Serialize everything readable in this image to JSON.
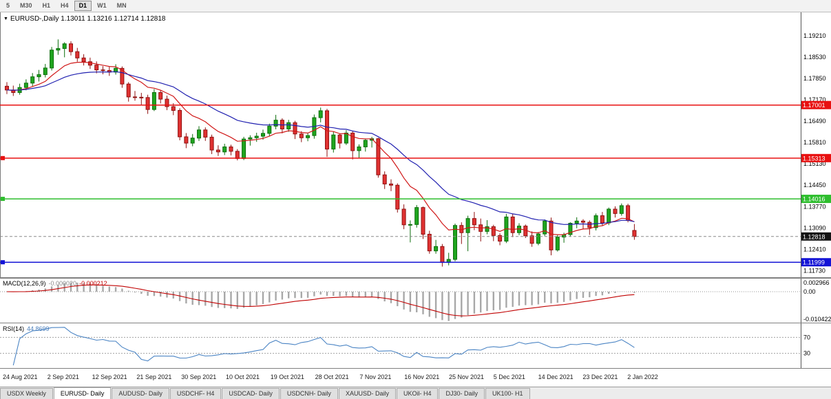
{
  "toolbar": {
    "buttons": [
      {
        "label": "5",
        "active": false
      },
      {
        "label": "M30",
        "active": false
      },
      {
        "label": "H1",
        "active": false
      },
      {
        "label": "H4",
        "active": false
      },
      {
        "label": "D1",
        "active": true
      },
      {
        "label": "W1",
        "active": false
      },
      {
        "label": "MN",
        "active": false
      }
    ]
  },
  "chart": {
    "title_symbol": "EURUSD-,Daily",
    "title_ohlc": "1.13011 1.13216 1.12714 1.12818",
    "y_axis_labels": [
      "1.19210",
      "1.18530",
      "1.17850",
      "1.17170",
      "1.16490",
      "1.15810",
      "1.15130",
      "1.14450",
      "1.13770",
      "1.13090",
      "1.12410",
      "1.11730"
    ],
    "price_range": {
      "top": 1.1995,
      "bottom": 1.115
    },
    "hlines": [
      {
        "price": 1.17001,
        "label": "1.17001",
        "color": "#e81010",
        "handle": false
      },
      {
        "price": 1.15313,
        "label": "1.15313",
        "color": "#e81010",
        "handle": true
      },
      {
        "price": 1.14016,
        "label": "1.14016",
        "color": "#2dbe2d",
        "handle": true
      },
      {
        "price": 1.11999,
        "label": "1.11999",
        "color": "#1414d6",
        "handle": true
      }
    ],
    "current_price": {
      "value": 1.12818,
      "label": "1.12818",
      "bg": "#141414"
    },
    "up_color": "#1fa51f",
    "up_edge": "#0c6e0c",
    "down_color": "#e03232",
    "down_edge": "#901010",
    "ma_fast_color": "#d01818",
    "ma_slow_color": "#2020b0"
  },
  "macd": {
    "label": "MACD(12,26,9)",
    "value_main": "-0.000020",
    "value_signal": "-0.000212",
    "axis_labels": [
      "0.002966",
      "0.00",
      "-0.010422"
    ],
    "histogram_color": "#a8a8a8",
    "signal_color": "#c00000"
  },
  "rsi": {
    "label": "RSI(14)",
    "value": "44.8699",
    "levels": [
      70,
      30
    ],
    "axis_labels": [
      "70",
      "30"
    ],
    "line_color": "#4a84c4"
  },
  "x_axis": {
    "labels": [
      "24 Aug 2021",
      "2 Sep 2021",
      "12 Sep 2021",
      "21 Sep 2021",
      "30 Sep 2021",
      "10 Oct 2021",
      "19 Oct 2021",
      "28 Oct 2021",
      "7 Nov 2021",
      "16 Nov 2021",
      "25 Nov 2021",
      "5 Dec 2021",
      "14 Dec 2021",
      "23 Dec 2021",
      "2 Jan 2022"
    ]
  },
  "tabs": [
    {
      "label": "USDX Weekly",
      "active": false
    },
    {
      "label": "EURUSD- Daily",
      "active": true
    },
    {
      "label": "AUDUSD- Daily",
      "active": false
    },
    {
      "label": "USDCHF- H4",
      "active": false
    },
    {
      "label": "USDCAD- Daily",
      "active": false
    },
    {
      "label": "USDCNH- Daily",
      "active": false
    },
    {
      "label": "XAUUSD- Daily",
      "active": false
    },
    {
      "label": "UKOil- H4",
      "active": false
    },
    {
      "label": "DJ30- Daily",
      "active": false
    },
    {
      "label": "UK100- H1",
      "active": false
    }
  ],
  "chart_data": {
    "type": "candlestick",
    "symbol": "EURUSD",
    "timeframe": "Daily",
    "title": "EURUSD-,Daily",
    "x_labels": [
      "24 Aug 2021",
      "2 Sep 2021",
      "12 Sep 2021",
      "21 Sep 2021",
      "30 Sep 2021",
      "10 Oct 2021",
      "19 Oct 2021",
      "28 Oct 2021",
      "7 Nov 2021",
      "16 Nov 2021",
      "25 Nov 2021",
      "5 Dec 2021",
      "14 Dec 2021",
      "23 Dec 2021",
      "2 Jan 2022"
    ],
    "candles_per_label": 7,
    "ylim": [
      1.115,
      1.1995
    ],
    "candles": [
      [
        1.176,
        1.1773,
        1.1735,
        1.1748
      ],
      [
        1.1748,
        1.1762,
        1.1729,
        1.174
      ],
      [
        1.174,
        1.1768,
        1.1733,
        1.1756
      ],
      [
        1.1756,
        1.1782,
        1.1747,
        1.177
      ],
      [
        1.177,
        1.1802,
        1.176,
        1.179
      ],
      [
        1.179,
        1.1812,
        1.1775,
        1.1797
      ],
      [
        1.1797,
        1.1831,
        1.1788,
        1.1818
      ],
      [
        1.1818,
        1.1885,
        1.181,
        1.1875
      ],
      [
        1.1875,
        1.1909,
        1.186,
        1.188
      ],
      [
        1.188,
        1.19,
        1.1852,
        1.1895
      ],
      [
        1.1895,
        1.1903,
        1.1858,
        1.187
      ],
      [
        1.187,
        1.1882,
        1.1838,
        1.185
      ],
      [
        1.185,
        1.1862,
        1.1826,
        1.1838
      ],
      [
        1.1838,
        1.1851,
        1.1815,
        1.1827
      ],
      [
        1.1827,
        1.1839,
        1.1801,
        1.1812
      ],
      [
        1.1812,
        1.1824,
        1.1798,
        1.181
      ],
      [
        1.181,
        1.1822,
        1.1793,
        1.1805
      ],
      [
        1.1805,
        1.183,
        1.1797,
        1.1817
      ],
      [
        1.1817,
        1.1823,
        1.1755,
        1.1767
      ],
      [
        1.1767,
        1.1773,
        1.1711,
        1.1726
      ],
      [
        1.1726,
        1.1745,
        1.1714,
        1.1725
      ],
      [
        1.1725,
        1.1739,
        1.1701,
        1.1724
      ],
      [
        1.1724,
        1.1733,
        1.1672,
        1.1686
      ],
      [
        1.1686,
        1.1751,
        1.1681,
        1.174
      ],
      [
        1.174,
        1.1747,
        1.1705,
        1.1719
      ],
      [
        1.1719,
        1.173,
        1.1684,
        1.1695
      ],
      [
        1.1695,
        1.1706,
        1.1668,
        1.1683
      ],
      [
        1.1683,
        1.169,
        1.1588,
        1.1599
      ],
      [
        1.1599,
        1.1611,
        1.1563,
        1.1579
      ],
      [
        1.1579,
        1.1608,
        1.1569,
        1.1595
      ],
      [
        1.1595,
        1.1633,
        1.1586,
        1.1621
      ],
      [
        1.1621,
        1.1629,
        1.1586,
        1.1598
      ],
      [
        1.1598,
        1.1606,
        1.1544,
        1.1557
      ],
      [
        1.1557,
        1.1572,
        1.1538,
        1.1551
      ],
      [
        1.1551,
        1.1577,
        1.1541,
        1.1567
      ],
      [
        1.1567,
        1.1574,
        1.154,
        1.1553
      ],
      [
        1.1553,
        1.156,
        1.1524,
        1.153
      ],
      [
        1.153,
        1.1599,
        1.1525,
        1.1592
      ],
      [
        1.1592,
        1.1604,
        1.1571,
        1.1596
      ],
      [
        1.1596,
        1.1612,
        1.1583,
        1.1601
      ],
      [
        1.1601,
        1.1622,
        1.159,
        1.161
      ],
      [
        1.161,
        1.1641,
        1.1601,
        1.1633
      ],
      [
        1.1633,
        1.1669,
        1.1623,
        1.1652
      ],
      [
        1.1652,
        1.1658,
        1.161,
        1.1624
      ],
      [
        1.1624,
        1.1653,
        1.1615,
        1.1644
      ],
      [
        1.1644,
        1.165,
        1.1592,
        1.1608
      ],
      [
        1.1608,
        1.1617,
        1.1582,
        1.1596
      ],
      [
        1.1596,
        1.1612,
        1.1585,
        1.1603
      ],
      [
        1.1603,
        1.167,
        1.1593,
        1.166
      ],
      [
        1.166,
        1.1692,
        1.1645,
        1.1682
      ],
      [
        1.1682,
        1.1688,
        1.1535,
        1.156
      ],
      [
        1.156,
        1.1616,
        1.1549,
        1.1605
      ],
      [
        1.1605,
        1.161,
        1.1562,
        1.1579
      ],
      [
        1.1579,
        1.162,
        1.1573,
        1.1611
      ],
      [
        1.1611,
        1.1617,
        1.1527,
        1.1555
      ],
      [
        1.1555,
        1.1575,
        1.1532,
        1.1567
      ],
      [
        1.1567,
        1.1593,
        1.1552,
        1.1588
      ],
      [
        1.1588,
        1.1599,
        1.1565,
        1.1593
      ],
      [
        1.1593,
        1.1596,
        1.1469,
        1.1478
      ],
      [
        1.1478,
        1.1489,
        1.1433,
        1.1449
      ],
      [
        1.1449,
        1.1464,
        1.1426,
        1.1445
      ],
      [
        1.1445,
        1.1451,
        1.1358,
        1.1369
      ],
      [
        1.1369,
        1.1384,
        1.1305,
        1.1319
      ],
      [
        1.1319,
        1.1333,
        1.1263,
        1.132
      ],
      [
        1.132,
        1.1382,
        1.131,
        1.1374
      ],
      [
        1.1374,
        1.1377,
        1.1274,
        1.1289
      ],
      [
        1.1289,
        1.13,
        1.1227,
        1.1236
      ],
      [
        1.1236,
        1.1271,
        1.1227,
        1.125
      ],
      [
        1.125,
        1.1258,
        1.1186,
        1.1199
      ],
      [
        1.1199,
        1.123,
        1.119,
        1.1209
      ],
      [
        1.1209,
        1.1323,
        1.1203,
        1.1317
      ],
      [
        1.1317,
        1.1327,
        1.1258,
        1.1294
      ],
      [
        1.1294,
        1.1348,
        1.1235,
        1.1339
      ],
      [
        1.1339,
        1.136,
        1.1302,
        1.1319
      ],
      [
        1.1319,
        1.1339,
        1.1266,
        1.1298
      ],
      [
        1.1298,
        1.1334,
        1.1289,
        1.1313
      ],
      [
        1.1313,
        1.1319,
        1.1267,
        1.1285
      ],
      [
        1.1285,
        1.1292,
        1.1254,
        1.1267
      ],
      [
        1.1267,
        1.1354,
        1.1261,
        1.1344
      ],
      [
        1.1344,
        1.1355,
        1.128,
        1.1294
      ],
      [
        1.1294,
        1.1324,
        1.1286,
        1.1315
      ],
      [
        1.1315,
        1.132,
        1.1277,
        1.1284
      ],
      [
        1.1284,
        1.1298,
        1.1249,
        1.126
      ],
      [
        1.126,
        1.1296,
        1.1254,
        1.129
      ],
      [
        1.129,
        1.1336,
        1.1283,
        1.1331
      ],
      [
        1.1331,
        1.1342,
        1.1222,
        1.1239
      ],
      [
        1.1239,
        1.1287,
        1.1234,
        1.128
      ],
      [
        1.128,
        1.1294,
        1.1262,
        1.1288
      ],
      [
        1.1288,
        1.1327,
        1.1281,
        1.1324
      ],
      [
        1.1324,
        1.1343,
        1.1308,
        1.1331
      ],
      [
        1.1331,
        1.1337,
        1.1304,
        1.1327
      ],
      [
        1.1327,
        1.1333,
        1.1287,
        1.131
      ],
      [
        1.131,
        1.1355,
        1.1301,
        1.1348
      ],
      [
        1.1348,
        1.136,
        1.1316,
        1.1325
      ],
      [
        1.1325,
        1.1374,
        1.1318,
        1.1369
      ],
      [
        1.1369,
        1.1378,
        1.1342,
        1.1355
      ],
      [
        1.1355,
        1.1387,
        1.1348,
        1.138
      ],
      [
        1.138,
        1.1386,
        1.1327,
        1.1333
      ],
      [
        1.13011,
        1.13216,
        1.12714,
        1.12818
      ]
    ],
    "overlays": [
      {
        "name": "ma-fast",
        "type": "ema",
        "period": 10,
        "color": "#d01818"
      },
      {
        "name": "ma-slow",
        "type": "ema",
        "period": 24,
        "color": "#2020b0"
      }
    ],
    "indicators": [
      {
        "name": "MACD",
        "params": [
          12,
          26,
          9
        ],
        "last_main": -2e-05,
        "last_signal": -0.000212
      },
      {
        "name": "RSI",
        "params": [
          14
        ],
        "last_value": 44.8699,
        "levels": [
          70,
          30
        ]
      }
    ],
    "hlines": [
      1.17001,
      1.15313,
      1.14016,
      1.11999
    ],
    "last_bar": {
      "open": 1.13011,
      "high": 1.13216,
      "low": 1.12714,
      "close": 1.12818
    }
  }
}
